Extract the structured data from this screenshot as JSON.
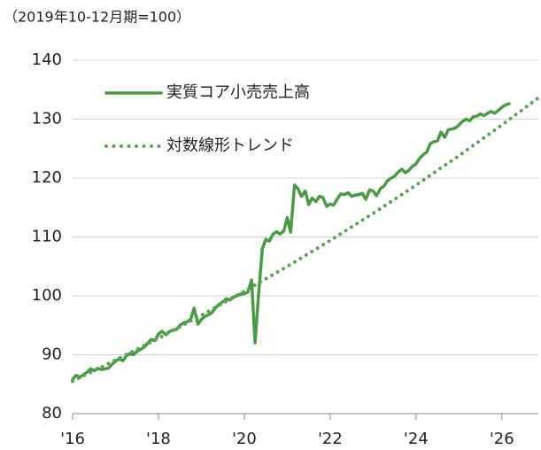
{
  "chart_data": {
    "type": "line",
    "subtitle": "（2019年10-12月期=100）",
    "xlim": [
      2016,
      2026.85
    ],
    "xticks": [
      {
        "value": 2016,
        "label": "'16"
      },
      {
        "value": 2018,
        "label": "'18"
      },
      {
        "value": 2020,
        "label": "'20"
      },
      {
        "value": 2022,
        "label": "'22"
      },
      {
        "value": 2024,
        "label": "'24"
      },
      {
        "value": 2026,
        "label": "'26"
      }
    ],
    "ylim": [
      80,
      140
    ],
    "yticks": [
      80,
      90,
      100,
      110,
      120,
      130,
      140
    ],
    "grid": true,
    "legend": "upper left",
    "series": [
      {
        "name": "実質コア小売売上高",
        "color": "#4d9a46",
        "style": "solid",
        "x": [
          2016,
          2016.08,
          2016.17,
          2016.25,
          2016.33,
          2016.42,
          2016.5,
          2016.58,
          2016.67,
          2016.75,
          2016.83,
          2016.92,
          2017,
          2017.08,
          2017.17,
          2017.25,
          2017.33,
          2017.42,
          2017.5,
          2017.58,
          2017.67,
          2017.75,
          2017.83,
          2017.92,
          2018,
          2018.08,
          2018.17,
          2018.25,
          2018.33,
          2018.42,
          2018.5,
          2018.58,
          2018.67,
          2018.75,
          2018.83,
          2018.92,
          2019,
          2019.08,
          2019.17,
          2019.25,
          2019.33,
          2019.42,
          2019.5,
          2019.58,
          2019.67,
          2019.75,
          2019.83,
          2019.92,
          2020,
          2020.08,
          2020.17,
          2020.25,
          2020.33,
          2020.42,
          2020.5,
          2020.58,
          2020.67,
          2020.75,
          2020.83,
          2020.92,
          2021,
          2021.08,
          2021.17,
          2021.25,
          2021.33,
          2021.42,
          2021.5,
          2021.58,
          2021.67,
          2021.75,
          2021.83,
          2021.92,
          2022,
          2022.08,
          2022.17,
          2022.25,
          2022.33,
          2022.42,
          2022.5,
          2022.58,
          2022.67,
          2022.75,
          2022.83,
          2022.92,
          2023,
          2023.08,
          2023.17,
          2023.25,
          2023.33,
          2023.42,
          2023.5,
          2023.58,
          2023.67,
          2023.75,
          2023.83,
          2023.92,
          2024,
          2024.08,
          2024.17,
          2024.25,
          2024.33,
          2024.42,
          2024.5,
          2024.58,
          2024.67,
          2024.75,
          2024.83,
          2024.92,
          2025,
          2025.08,
          2025.17,
          2025.25,
          2025.33,
          2025.42,
          2025.5,
          2025.58,
          2025.67,
          2025.75,
          2025.83,
          2025.92,
          2026,
          2026.08,
          2026.17
        ],
        "values": [
          85.8,
          86.5,
          86.2,
          86.6,
          87.0,
          87.6,
          87.3,
          87.7,
          87.5,
          87.6,
          87.7,
          88.4,
          88.9,
          89.3,
          89.0,
          89.8,
          90.2,
          90.0,
          90.6,
          90.9,
          91.3,
          92.0,
          92.6,
          92.4,
          93.5,
          94.0,
          93.4,
          93.9,
          94.2,
          94.3,
          95.0,
          95.4,
          95.6,
          96.0,
          97.9,
          95.2,
          96.0,
          96.5,
          96.8,
          97.2,
          98.0,
          98.6,
          99.0,
          99.5,
          99.3,
          99.8,
          100.0,
          100.3,
          100.4,
          100.6,
          102.7,
          92.0,
          100.0,
          108.0,
          109.6,
          109.3,
          110.5,
          110.9,
          110.5,
          111.0,
          113.3,
          110.8,
          118.8,
          118.2,
          116.9,
          117.8,
          115.5,
          116.6,
          116.0,
          116.9,
          116.7,
          115.2,
          115.6,
          115.4,
          116.5,
          117.3,
          117.2,
          117.5,
          116.9,
          117.1,
          117.2,
          117.4,
          116.4,
          118.0,
          117.8,
          117.0,
          118.2,
          118.6,
          119.5,
          120.0,
          120.3,
          121.0,
          121.5,
          120.9,
          121.3,
          122.0,
          122.4,
          123.3,
          124.0,
          124.4,
          125.8,
          126.2,
          126.3,
          127.8,
          126.9,
          128.2,
          128.3,
          128.5,
          129.0,
          129.6,
          130.0,
          129.7,
          130.4,
          130.5,
          130.9,
          130.6,
          131.0,
          131.3,
          131.0,
          131.5,
          132.0,
          132.4,
          132.6
        ]
      },
      {
        "name": "対数線形トレンド",
        "color": "#5aa352",
        "style": "dotted",
        "x": [
          2016,
          2017,
          2018,
          2019,
          2020,
          2021,
          2022,
          2023,
          2024,
          2025,
          2026,
          2026.85
        ],
        "values": [
          85.5,
          89.1,
          92.8,
          96.7,
          100.8,
          105.0,
          109.4,
          114.0,
          118.8,
          123.8,
          129.0,
          133.6
        ]
      }
    ]
  }
}
